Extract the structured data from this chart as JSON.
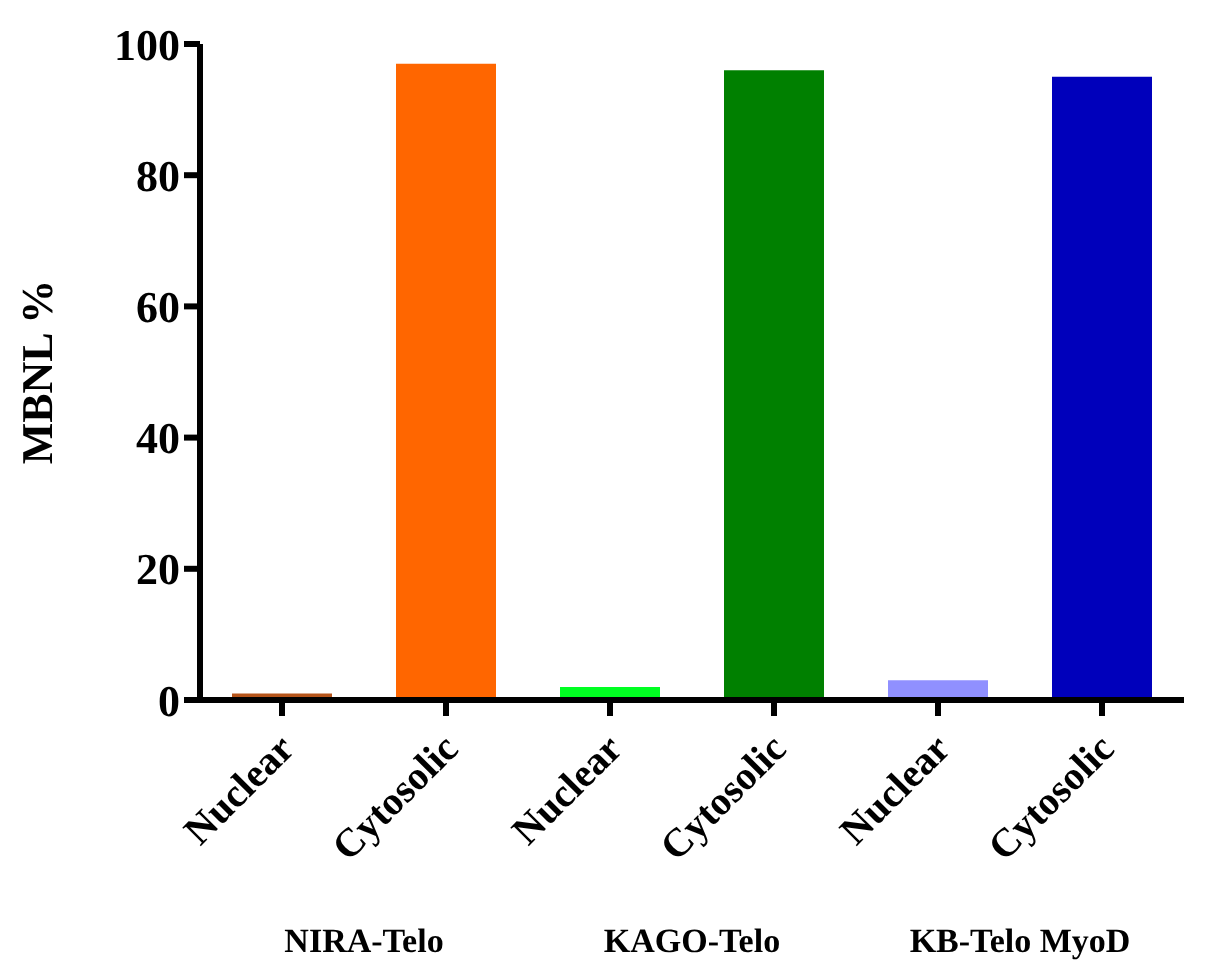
{
  "chart_data": {
    "type": "bar",
    "ylabel": "MBNL %",
    "categories": [
      "Nuclear",
      "Cytosolic",
      "Nuclear",
      "Cytosolic",
      "Nuclear",
      "Cytosolic"
    ],
    "values": [
      1,
      97,
      2,
      96,
      3,
      95
    ],
    "colors": [
      "#b5541a",
      "#ff6600",
      "#00ff22",
      "#008000",
      "#9090ff",
      "#0000bb"
    ],
    "ylim": [
      0,
      100
    ],
    "yticks": [
      0,
      20,
      40,
      60,
      80,
      100
    ],
    "grid": false,
    "annotations": [
      "NIRA-Telo",
      "KAGO-Telo",
      "KB-Telo MyoD"
    ]
  }
}
